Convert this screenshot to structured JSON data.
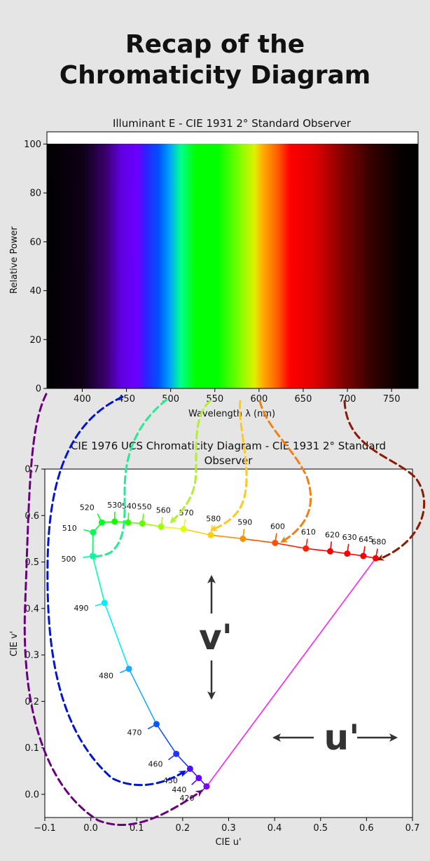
{
  "page": {
    "title_line1": "Recap of the",
    "title_line2": "Chromaticity Diagram"
  },
  "spectrum_plot": {
    "title": "Illuminant E - CIE 1931 2$^\\circ$ Standard Observer",
    "title_display": "Illuminant E - CIE 1931 2° Standard Observer",
    "xlabel": "Wavelength λ (nm)",
    "ylabel": "Relative Power",
    "xticks": [
      "400",
      "450",
      "500",
      "550",
      "600",
      "650",
      "700",
      "750"
    ],
    "yticks": [
      "0",
      "20",
      "40",
      "60",
      "80",
      "100"
    ]
  },
  "cie_plot": {
    "title_line1": "CIE 1976 UCS Chromaticity Diagram - CIE 1931 2° Standard",
    "title_line2": "Observer",
    "xlabel": "CIE u'",
    "ylabel": "CIE v'",
    "xticks": [
      "−0.1",
      "0.0",
      "0.1",
      "0.2",
      "0.3",
      "0.4",
      "0.5",
      "0.6",
      "0.7"
    ],
    "yticks": [
      "0.0",
      "0.1",
      "0.2",
      "0.3",
      "0.4",
      "0.5",
      "0.6",
      "0.7"
    ],
    "v_axis_label": "v'",
    "u_axis_label": "u'"
  },
  "chart_data": [
    {
      "type": "area",
      "title": "Illuminant E - CIE 1931 2° Standard Observer",
      "xlabel": "Wavelength λ (nm)",
      "ylabel": "Relative Power",
      "x": [
        360,
        780
      ],
      "values": [
        100,
        100
      ],
      "xlim": [
        360,
        780
      ],
      "ylim": [
        0,
        105
      ],
      "grid": false
    },
    {
      "type": "line",
      "title": "CIE 1976 UCS Chromaticity Diagram - CIE 1931 2° Standard Observer",
      "xlabel": "CIE u'",
      "ylabel": "CIE v'",
      "xlim": [
        -0.1,
        0.7
      ],
      "ylim": [
        -0.05,
        0.7
      ],
      "grid": false,
      "points": [
        {
          "label": "420",
          "wavelength": 420,
          "x": 0.252,
          "y": 0.017,
          "color": "#7a00ff"
        },
        {
          "label": "440",
          "wavelength": 440,
          "x": 0.235,
          "y": 0.035,
          "color": "#6a00ff"
        },
        {
          "label": "450",
          "wavelength": 450,
          "x": 0.216,
          "y": 0.055,
          "color": "#4f0fff"
        },
        {
          "label": "460",
          "wavelength": 460,
          "x": 0.186,
          "y": 0.087,
          "color": "#2233ff"
        },
        {
          "label": "470",
          "wavelength": 470,
          "x": 0.143,
          "y": 0.151,
          "color": "#1055ff"
        },
        {
          "label": "480",
          "wavelength": 480,
          "x": 0.083,
          "y": 0.27,
          "color": "#1aaaff"
        },
        {
          "label": "490",
          "wavelength": 490,
          "x": 0.03,
          "y": 0.412,
          "color": "#00f0ff"
        },
        {
          "label": "500",
          "wavelength": 500,
          "x": 0.004,
          "y": 0.513,
          "color": "#00ffb0"
        },
        {
          "label": "510",
          "wavelength": 510,
          "x": 0.005,
          "y": 0.564,
          "color": "#00ff55"
        },
        {
          "label": "520",
          "wavelength": 520,
          "x": 0.024,
          "y": 0.585,
          "color": "#00ff20"
        },
        {
          "label": "530",
          "wavelength": 530,
          "x": 0.052,
          "y": 0.587,
          "color": "#10ff00"
        },
        {
          "label": "540",
          "wavelength": 540,
          "x": 0.081,
          "y": 0.585,
          "color": "#30ff00"
        },
        {
          "label": "550",
          "wavelength": 550,
          "x": 0.112,
          "y": 0.583,
          "color": "#60ff00"
        },
        {
          "label": "560",
          "wavelength": 560,
          "x": 0.153,
          "y": 0.576,
          "color": "#a0ff00"
        },
        {
          "label": "570",
          "wavelength": 570,
          "x": 0.202,
          "y": 0.571,
          "color": "#e0ff00"
        },
        {
          "label": "580",
          "wavelength": 580,
          "x": 0.261,
          "y": 0.558,
          "color": "#ffd000"
        },
        {
          "label": "590",
          "wavelength": 590,
          "x": 0.331,
          "y": 0.55,
          "color": "#ff9000"
        },
        {
          "label": "600",
          "wavelength": 600,
          "x": 0.401,
          "y": 0.541,
          "color": "#ff5000"
        },
        {
          "label": "610",
          "wavelength": 610,
          "x": 0.468,
          "y": 0.529,
          "color": "#ff2000"
        },
        {
          "label": "620",
          "wavelength": 620,
          "x": 0.521,
          "y": 0.523,
          "color": "#ff0000"
        },
        {
          "label": "630",
          "wavelength": 630,
          "x": 0.558,
          "y": 0.518,
          "color": "#ff0000"
        },
        {
          "label": "645",
          "wavelength": 645,
          "x": 0.593,
          "y": 0.513,
          "color": "#ff0000"
        },
        {
          "label": "680",
          "wavelength": 680,
          "x": 0.62,
          "y": 0.508,
          "color": "#ff0000"
        }
      ],
      "purple_line": {
        "from": [
          0.62,
          0.508
        ],
        "to": [
          0.252,
          0.017
        ],
        "color": "#ff20ff"
      }
    }
  ],
  "connector_colors": {
    "violet": "#6a0080",
    "blue": "#0015d5",
    "cyan": "#20ee90",
    "yellowgreen": "#b0f030",
    "yellow": "#ffc820",
    "orange": "#f08010",
    "darkred": "#8b1a00"
  }
}
